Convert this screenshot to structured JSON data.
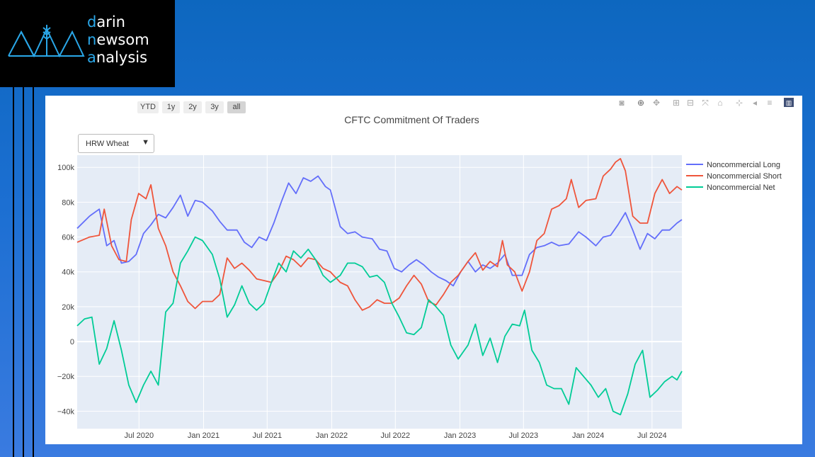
{
  "logo": {
    "line1_accent": "d",
    "line1_rest": "arin",
    "line2_accent": "n",
    "line2_rest": "ewsom",
    "line3_accent": "a",
    "line3_rest": "nalysis"
  },
  "range_selector": [
    {
      "label": "YTD",
      "active": false
    },
    {
      "label": "1y",
      "active": false
    },
    {
      "label": "2y",
      "active": false
    },
    {
      "label": "3y",
      "active": false
    },
    {
      "label": "all",
      "active": true
    }
  ],
  "dropdown": {
    "selected": "HRW Wheat",
    "arrow": "▼"
  },
  "modebar_icons": [
    "camera-icon",
    "zoom-icon",
    "pan-icon",
    "zoom-in-icon",
    "zoom-out-icon",
    "autoscale-icon",
    "home-icon",
    "spike-lines-icon",
    "hover-closest-icon",
    "hover-compare-icon",
    "plotly-logo-icon"
  ],
  "colors": {
    "long": "#636efa",
    "short": "#ef553b",
    "net": "#00cc96",
    "plot_bg": "#e5ecf6",
    "accent": "#2aa7e8"
  },
  "chart_data": {
    "type": "line",
    "title": "CFTC Commitment Of Traders",
    "xlabel": "",
    "ylabel": "",
    "x_range": [
      "2020-01-07",
      "2024-09-24"
    ],
    "ylim": [
      -50000,
      107000
    ],
    "y_ticks": [
      -40000,
      -20000,
      0,
      20000,
      40000,
      60000,
      80000,
      100000
    ],
    "y_tick_labels": [
      "−40k",
      "−20k",
      "0",
      "20k",
      "40k",
      "60k",
      "80k",
      "100k"
    ],
    "x_ticks": [
      "2020-07-01",
      "2021-01-01",
      "2021-07-01",
      "2022-01-01",
      "2022-07-01",
      "2023-01-01",
      "2023-07-01",
      "2024-01-01",
      "2024-07-01"
    ],
    "x_tick_labels": [
      "Jul 2020",
      "Jan 2021",
      "Jul 2021",
      "Jan 2022",
      "Jul 2022",
      "Jan 2023",
      "Jul 2023",
      "Jan 2024",
      "Jul 2024"
    ],
    "grid": true,
    "legend_position": "right",
    "series": [
      {
        "name": "Noncommercial Long",
        "points": [
          [
            "2020-01-07",
            65000
          ],
          [
            "2020-02-11",
            72000
          ],
          [
            "2020-03-10",
            76000
          ],
          [
            "2020-03-31",
            55000
          ],
          [
            "2020-04-21",
            58000
          ],
          [
            "2020-05-12",
            45000
          ],
          [
            "2020-06-02",
            46000
          ],
          [
            "2020-06-23",
            50000
          ],
          [
            "2020-07-14",
            62000
          ],
          [
            "2020-08-04",
            67000
          ],
          [
            "2020-08-25",
            73000
          ],
          [
            "2020-09-15",
            71000
          ],
          [
            "2020-10-06",
            77000
          ],
          [
            "2020-10-27",
            84000
          ],
          [
            "2020-11-17",
            72000
          ],
          [
            "2020-12-08",
            81000
          ],
          [
            "2020-12-29",
            80000
          ],
          [
            "2021-01-26",
            75000
          ],
          [
            "2021-02-16",
            69000
          ],
          [
            "2021-03-09",
            64000
          ],
          [
            "2021-04-06",
            64000
          ],
          [
            "2021-04-27",
            57000
          ],
          [
            "2021-05-18",
            54000
          ],
          [
            "2021-06-08",
            60000
          ],
          [
            "2021-06-29",
            58000
          ],
          [
            "2021-07-20",
            68000
          ],
          [
            "2021-08-10",
            80000
          ],
          [
            "2021-08-31",
            91000
          ],
          [
            "2021-09-21",
            85000
          ],
          [
            "2021-10-12",
            94000
          ],
          [
            "2021-11-02",
            92000
          ],
          [
            "2021-11-23",
            95000
          ],
          [
            "2021-12-14",
            89000
          ],
          [
            "2021-12-28",
            87000
          ],
          [
            "2022-01-25",
            66000
          ],
          [
            "2022-02-15",
            62000
          ],
          [
            "2022-03-08",
            63000
          ],
          [
            "2022-03-29",
            60000
          ],
          [
            "2022-04-26",
            59000
          ],
          [
            "2022-05-17",
            53000
          ],
          [
            "2022-06-07",
            52000
          ],
          [
            "2022-06-28",
            42000
          ],
          [
            "2022-07-19",
            40000
          ],
          [
            "2022-08-09",
            44000
          ],
          [
            "2022-08-30",
            47000
          ],
          [
            "2022-09-20",
            44000
          ],
          [
            "2022-10-11",
            40000
          ],
          [
            "2022-11-01",
            37000
          ],
          [
            "2022-11-22",
            35000
          ],
          [
            "2022-12-13",
            32000
          ],
          [
            "2023-01-03",
            40000
          ],
          [
            "2023-01-24",
            46000
          ],
          [
            "2023-02-14",
            40000
          ],
          [
            "2023-03-07",
            44000
          ],
          [
            "2023-03-28",
            42000
          ],
          [
            "2023-04-18",
            45000
          ],
          [
            "2023-05-09",
            50000
          ],
          [
            "2023-05-30",
            38000
          ],
          [
            "2023-06-27",
            38000
          ],
          [
            "2023-07-18",
            50000
          ],
          [
            "2023-08-08",
            54000
          ],
          [
            "2023-08-29",
            55000
          ],
          [
            "2023-09-19",
            57000
          ],
          [
            "2023-10-10",
            55000
          ],
          [
            "2023-11-07",
            56000
          ],
          [
            "2023-12-05",
            63000
          ],
          [
            "2023-12-26",
            60000
          ],
          [
            "2024-01-23",
            55000
          ],
          [
            "2024-02-13",
            60000
          ],
          [
            "2024-03-05",
            61000
          ],
          [
            "2024-03-26",
            67000
          ],
          [
            "2024-04-16",
            74000
          ],
          [
            "2024-05-07",
            64000
          ],
          [
            "2024-05-28",
            53000
          ],
          [
            "2024-06-18",
            62000
          ],
          [
            "2024-07-09",
            59000
          ],
          [
            "2024-07-30",
            64000
          ],
          [
            "2024-08-20",
            64000
          ],
          [
            "2024-09-10",
            68000
          ],
          [
            "2024-09-24",
            70000
          ]
        ]
      },
      {
        "name": "Noncommercial Short",
        "points": [
          [
            "2020-01-07",
            57000
          ],
          [
            "2020-02-11",
            60000
          ],
          [
            "2020-03-10",
            61000
          ],
          [
            "2020-03-24",
            76000
          ],
          [
            "2020-04-14",
            55000
          ],
          [
            "2020-05-05",
            47000
          ],
          [
            "2020-05-26",
            46000
          ],
          [
            "2020-06-09",
            70000
          ],
          [
            "2020-06-30",
            85000
          ],
          [
            "2020-07-21",
            82000
          ],
          [
            "2020-08-04",
            90000
          ],
          [
            "2020-08-25",
            65000
          ],
          [
            "2020-09-15",
            55000
          ],
          [
            "2020-10-06",
            40000
          ],
          [
            "2020-10-27",
            32000
          ],
          [
            "2020-11-17",
            23000
          ],
          [
            "2020-12-08",
            19000
          ],
          [
            "2020-12-29",
            23000
          ],
          [
            "2021-01-26",
            23000
          ],
          [
            "2021-02-16",
            27000
          ],
          [
            "2021-03-09",
            48000
          ],
          [
            "2021-03-30",
            42000
          ],
          [
            "2021-04-20",
            45000
          ],
          [
            "2021-05-11",
            41000
          ],
          [
            "2021-06-01",
            36000
          ],
          [
            "2021-06-22",
            35000
          ],
          [
            "2021-07-13",
            34000
          ],
          [
            "2021-08-03",
            40000
          ],
          [
            "2021-08-24",
            49000
          ],
          [
            "2021-09-14",
            47000
          ],
          [
            "2021-10-05",
            43000
          ],
          [
            "2021-10-26",
            48000
          ],
          [
            "2021-11-16",
            47000
          ],
          [
            "2021-12-07",
            42000
          ],
          [
            "2021-12-28",
            40000
          ],
          [
            "2022-01-25",
            34000
          ],
          [
            "2022-02-15",
            32000
          ],
          [
            "2022-03-08",
            24000
          ],
          [
            "2022-03-29",
            18000
          ],
          [
            "2022-04-19",
            20000
          ],
          [
            "2022-05-10",
            24000
          ],
          [
            "2022-05-31",
            22000
          ],
          [
            "2022-06-21",
            22000
          ],
          [
            "2022-07-12",
            25000
          ],
          [
            "2022-08-02",
            32000
          ],
          [
            "2022-08-23",
            38000
          ],
          [
            "2022-09-13",
            33000
          ],
          [
            "2022-10-04",
            23000
          ],
          [
            "2022-10-25",
            21000
          ],
          [
            "2022-11-15",
            27000
          ],
          [
            "2022-12-06",
            34000
          ],
          [
            "2022-12-27",
            38000
          ],
          [
            "2023-01-24",
            46000
          ],
          [
            "2023-02-14",
            51000
          ],
          [
            "2023-03-07",
            41000
          ],
          [
            "2023-03-28",
            46000
          ],
          [
            "2023-04-18",
            43000
          ],
          [
            "2023-05-02",
            58000
          ],
          [
            "2023-05-16",
            44000
          ],
          [
            "2023-06-06",
            40000
          ],
          [
            "2023-06-27",
            29000
          ],
          [
            "2023-07-18",
            40000
          ],
          [
            "2023-08-08",
            58000
          ],
          [
            "2023-08-29",
            62000
          ],
          [
            "2023-09-19",
            76000
          ],
          [
            "2023-10-10",
            78000
          ],
          [
            "2023-10-31",
            82000
          ],
          [
            "2023-11-14",
            93000
          ],
          [
            "2023-12-05",
            77000
          ],
          [
            "2023-12-26",
            81000
          ],
          [
            "2024-01-23",
            82000
          ],
          [
            "2024-02-13",
            95000
          ],
          [
            "2024-03-05",
            99000
          ],
          [
            "2024-03-19",
            103000
          ],
          [
            "2024-04-02",
            105000
          ],
          [
            "2024-04-16",
            98000
          ],
          [
            "2024-05-07",
            72000
          ],
          [
            "2024-05-28",
            68000
          ],
          [
            "2024-06-18",
            68000
          ],
          [
            "2024-07-09",
            85000
          ],
          [
            "2024-07-30",
            93000
          ],
          [
            "2024-08-20",
            85000
          ],
          [
            "2024-09-10",
            89000
          ],
          [
            "2024-09-24",
            87000
          ]
        ]
      },
      {
        "name": "Noncommercial Net",
        "points": [
          [
            "2020-01-07",
            9000
          ],
          [
            "2020-01-28",
            13000
          ],
          [
            "2020-02-18",
            14000
          ],
          [
            "2020-03-10",
            -13000
          ],
          [
            "2020-03-31",
            -4000
          ],
          [
            "2020-04-21",
            12000
          ],
          [
            "2020-05-12",
            -5000
          ],
          [
            "2020-06-02",
            -25000
          ],
          [
            "2020-06-23",
            -35000
          ],
          [
            "2020-07-14",
            -25000
          ],
          [
            "2020-08-04",
            -17000
          ],
          [
            "2020-08-25",
            -25000
          ],
          [
            "2020-09-15",
            17000
          ],
          [
            "2020-10-06",
            22000
          ],
          [
            "2020-10-27",
            45000
          ],
          [
            "2020-11-17",
            52000
          ],
          [
            "2020-12-08",
            60000
          ],
          [
            "2020-12-29",
            58000
          ],
          [
            "2021-01-26",
            50000
          ],
          [
            "2021-02-16",
            36000
          ],
          [
            "2021-03-09",
            14000
          ],
          [
            "2021-03-30",
            21000
          ],
          [
            "2021-04-20",
            32000
          ],
          [
            "2021-05-11",
            22000
          ],
          [
            "2021-06-01",
            18000
          ],
          [
            "2021-06-22",
            22000
          ],
          [
            "2021-07-13",
            34000
          ],
          [
            "2021-08-03",
            45000
          ],
          [
            "2021-08-24",
            40000
          ],
          [
            "2021-09-14",
            52000
          ],
          [
            "2021-10-05",
            48000
          ],
          [
            "2021-10-26",
            53000
          ],
          [
            "2021-11-16",
            47000
          ],
          [
            "2021-12-07",
            38000
          ],
          [
            "2021-12-28",
            34000
          ],
          [
            "2022-01-25",
            38000
          ],
          [
            "2022-02-15",
            45000
          ],
          [
            "2022-03-08",
            45000
          ],
          [
            "2022-03-29",
            43000
          ],
          [
            "2022-04-19",
            37000
          ],
          [
            "2022-05-10",
            38000
          ],
          [
            "2022-05-31",
            34000
          ],
          [
            "2022-06-21",
            22000
          ],
          [
            "2022-07-12",
            14000
          ],
          [
            "2022-08-02",
            5000
          ],
          [
            "2022-08-23",
            4000
          ],
          [
            "2022-09-13",
            8000
          ],
          [
            "2022-10-04",
            24000
          ],
          [
            "2022-10-25",
            20000
          ],
          [
            "2022-11-15",
            15000
          ],
          [
            "2022-12-06",
            -2000
          ],
          [
            "2022-12-27",
            -10000
          ],
          [
            "2023-01-24",
            -2000
          ],
          [
            "2023-02-14",
            10000
          ],
          [
            "2023-03-07",
            -8000
          ],
          [
            "2023-03-28",
            2000
          ],
          [
            "2023-04-18",
            -12000
          ],
          [
            "2023-05-09",
            3000
          ],
          [
            "2023-05-30",
            10000
          ],
          [
            "2023-06-20",
            9000
          ],
          [
            "2023-07-04",
            18000
          ],
          [
            "2023-07-25",
            -5000
          ],
          [
            "2023-08-15",
            -12000
          ],
          [
            "2023-09-05",
            -25000
          ],
          [
            "2023-09-26",
            -27000
          ],
          [
            "2023-10-17",
            -27000
          ],
          [
            "2023-11-07",
            -36000
          ],
          [
            "2023-11-28",
            -15000
          ],
          [
            "2023-12-19",
            -20000
          ],
          [
            "2024-01-09",
            -25000
          ],
          [
            "2024-01-30",
            -32000
          ],
          [
            "2024-02-20",
            -27000
          ],
          [
            "2024-03-12",
            -40000
          ],
          [
            "2024-04-02",
            -42000
          ],
          [
            "2024-04-23",
            -30000
          ],
          [
            "2024-05-14",
            -13000
          ],
          [
            "2024-06-04",
            -5000
          ],
          [
            "2024-06-25",
            -32000
          ],
          [
            "2024-07-16",
            -28000
          ],
          [
            "2024-08-06",
            -23000
          ],
          [
            "2024-08-27",
            -20000
          ],
          [
            "2024-09-10",
            -22000
          ],
          [
            "2024-09-24",
            -17000
          ]
        ]
      }
    ]
  }
}
